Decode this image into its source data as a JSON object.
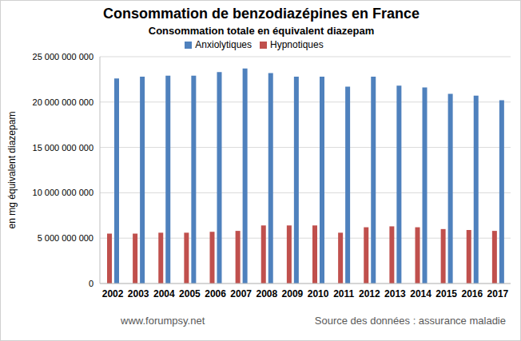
{
  "chart_data": {
    "type": "bar",
    "title": "Consommation de benzodiazépines en France",
    "subtitle": "Consommation totale en équivalent diazepam",
    "y_label": "en mg équivalent diazepam",
    "annotations": [
      "www.forumpsy.net",
      "Source des données : assurance maladie"
    ],
    "categories": [
      "2002",
      "2003",
      "2004",
      "2005",
      "2006",
      "2007",
      "2008",
      "2009",
      "2010",
      "2011",
      "2012",
      "2013",
      "2014",
      "2015",
      "2016",
      "2017"
    ],
    "series": [
      {
        "name": "Hypnotiques",
        "color": "#c0504d",
        "values": [
          5500000000,
          5500000000,
          5600000000,
          5600000000,
          5700000000,
          5800000000,
          6400000000,
          6400000000,
          6400000000,
          5600000000,
          6200000000,
          6300000000,
          6200000000,
          6000000000,
          5900000000,
          5800000000
        ]
      },
      {
        "name": "Anxiolytiques",
        "color": "#4f81bd",
        "values": [
          22600000000,
          22800000000,
          22900000000,
          22900000000,
          23300000000,
          23700000000,
          23200000000,
          22800000000,
          22800000000,
          21700000000,
          22800000000,
          21800000000,
          21600000000,
          20900000000,
          20700000000,
          20200000000
        ]
      }
    ],
    "ylim": [
      0,
      25000000000
    ],
    "yticks": [
      0,
      {
        "value": 5000000000,
        "label": "5 000 000 000"
      },
      {
        "value": 10000000000,
        "label": "10 000 000 000"
      },
      {
        "value": 15000000000,
        "label": "15 000 000 000"
      },
      {
        "value": 20000000000,
        "label": "20 000 000 000"
      },
      {
        "value": 25000000000,
        "label": "25 000 000 000"
      }
    ],
    "grid": true,
    "legend": "top"
  }
}
